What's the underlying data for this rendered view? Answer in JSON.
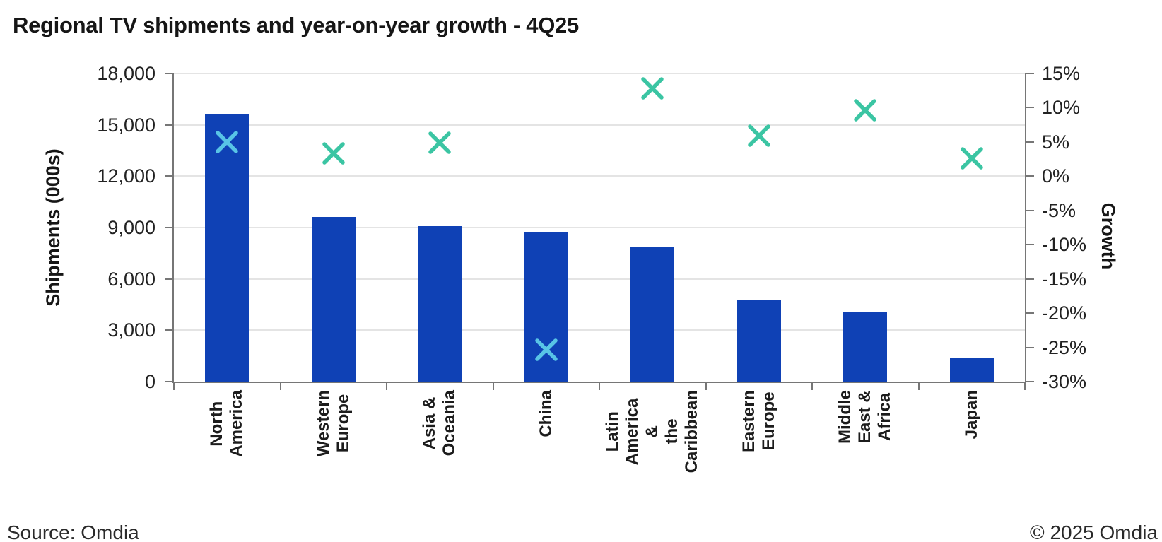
{
  "title": "Regional TV shipments and year-on-year growth - 4Q25",
  "footer": {
    "source": "Source: Omdia",
    "copyright": "© 2025 Omdia"
  },
  "colors": {
    "bar_blue": "#0f41b5",
    "marker_teal": "#3bc5a3",
    "marker_teal_on_bar": "#58c4e6",
    "gridline": "#e4e4e4",
    "axis_line": "#767676"
  },
  "chart_data": {
    "type": "bar",
    "subtype": "bar-with-scatter-x-markers-dual-axis",
    "title": "Regional TV shipments and year-on-year growth - 4Q25",
    "categories": [
      "North America",
      "Western Europe",
      "Asia & Oceania",
      "China",
      "Latin America &\nthe Caribbean",
      "Eastern Europe",
      "Middle East &\nAfrica",
      "Japan"
    ],
    "series": [
      {
        "name": "Shipments (000s)",
        "type": "bar",
        "axis": "left",
        "color": "#0f41b5",
        "values": [
          15600,
          9600,
          9100,
          8700,
          7900,
          4800,
          4100,
          1350
        ]
      },
      {
        "name": "Growth",
        "type": "scatter",
        "marker": "x",
        "axis": "right",
        "color": "#3bc5a3",
        "values": [
          5.0,
          3.3,
          4.9,
          -25.4,
          12.8,
          5.9,
          9.6,
          2.6
        ]
      }
    ],
    "marker_colors": [
      "#58c4e6",
      "#3bc5a3",
      "#3bc5a3",
      "#58c4e6",
      "#3bc5a3",
      "#3bc5a3",
      "#3bc5a3",
      "#3bc5a3"
    ],
    "left_axis": {
      "label": "Shipments (000s)",
      "min": 0,
      "max": 18000,
      "tick_step": 3000,
      "tick_labels": [
        "18,000",
        "15,000",
        "12,000",
        "9,000",
        "6,000",
        "3,000",
        "0"
      ]
    },
    "right_axis": {
      "label": "Growth",
      "min": -30,
      "max": 15,
      "tick_step": 5,
      "tick_labels": [
        "15%",
        "10%",
        "5%",
        "0%",
        "-5%",
        "-10%",
        "-15%",
        "-20%",
        "-25%",
        "-30%"
      ]
    },
    "grid": "horizontal",
    "legend": "none"
  }
}
